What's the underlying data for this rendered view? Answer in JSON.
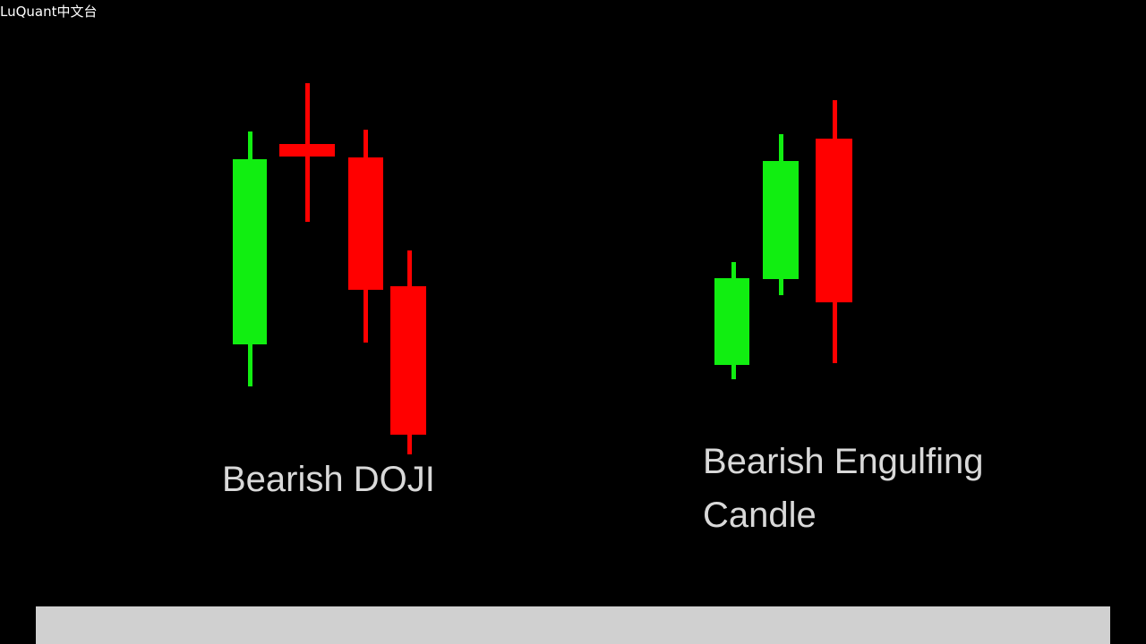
{
  "watermark": "LuQuant中文台",
  "patterns": [
    {
      "label": "Bearish DOJI"
    },
    {
      "label_lines": [
        "Bearish Engulfing",
        "Candle"
      ]
    }
  ]
}
